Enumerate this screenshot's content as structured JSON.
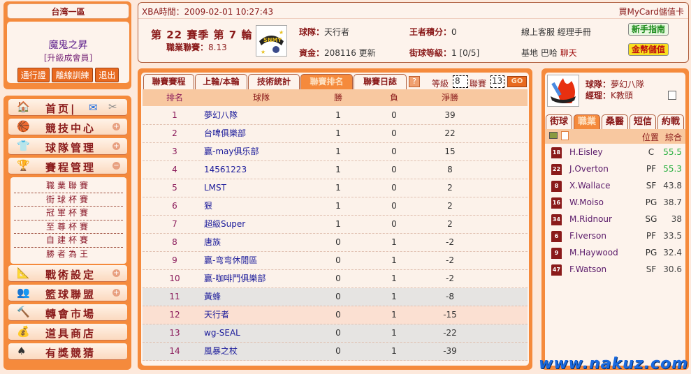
{
  "zone": "台湾一區",
  "user": {
    "name": "魔鬼之昇",
    "upgrade": "[升級成會員]",
    "buttons": [
      "通行證",
      "離線訓練",
      "退出"
    ]
  },
  "nav": {
    "items": [
      {
        "label": "首页|",
        "icon": "home-icon",
        "extra": true
      },
      {
        "label": "競技中心",
        "icon": "basketball-icon",
        "toggle": "+"
      },
      {
        "label": "球隊管理",
        "icon": "jersey-icon",
        "toggle": "+"
      },
      {
        "label": "賽程管理",
        "icon": "trophy-icon",
        "toggle": "−"
      },
      {
        "label": "戰術設定",
        "icon": "tactics-icon",
        "toggle": "+"
      },
      {
        "label": "籃球聯盟",
        "icon": "people-icon",
        "toggle": "+"
      },
      {
        "label": "轉會市場",
        "icon": "gavel-icon"
      },
      {
        "label": "道具商店",
        "icon": "gold-icon"
      },
      {
        "label": "有獎競猜",
        "icon": "spade-icon"
      }
    ],
    "submenu": [
      "職業聯賽",
      "街球杯賽",
      "冠軍杯賽",
      "至尊杯賽",
      "自建杯賽",
      "勝者為王"
    ]
  },
  "header": {
    "time_label": "XBA時間：",
    "time": "2009-02-01 10:27:43",
    "mycard": "買MyCard儲值卡",
    "season": "第 22 賽季 第 7 輪",
    "league_label": "職業聯賽：",
    "league_value": "8.13",
    "team_label": "球隊：",
    "team": "天行者",
    "funds_label": "資金：",
    "funds": "208116",
    "update": "更新",
    "king_label": "王者積分：",
    "king": "0",
    "street_label": "街球等級：",
    "street": "1 [0/5]",
    "links1": [
      "線上客服",
      "經理手冊"
    ],
    "links2": [
      "基地",
      "巴哈",
      "聊天"
    ],
    "guide": "新手指南",
    "topup": "金幣儲值"
  },
  "main": {
    "tabs": [
      "聯賽賽程",
      "上輪/本輪",
      "技術統計",
      "聯賽排名",
      "聯賽日誌"
    ],
    "active_tab": 3,
    "help": "?",
    "level_label": "等級",
    "level": "8",
    "league_label": "聯賽",
    "league": "13",
    "go": "GO",
    "columns": [
      "排名",
      "球隊",
      "勝",
      "負",
      "淨勝"
    ],
    "rows": [
      [
        "1",
        "夢幻八隊",
        "1",
        "0",
        "39"
      ],
      [
        "2",
        "台啤俱樂部",
        "1",
        "0",
        "22"
      ],
      [
        "3",
        "赢-may俱乐部",
        "1",
        "0",
        "15"
      ],
      [
        "4",
        "14561223",
        "1",
        "0",
        "8"
      ],
      [
        "5",
        "LMST",
        "1",
        "0",
        "2"
      ],
      [
        "6",
        "狠",
        "1",
        "0",
        "2"
      ],
      [
        "7",
        "超級Super",
        "1",
        "0",
        "2"
      ],
      [
        "8",
        "唐族",
        "0",
        "1",
        "-2"
      ],
      [
        "9",
        "赢-弯弯休閒區",
        "0",
        "1",
        "-2"
      ],
      [
        "10",
        "赢-咖啡鬥俱樂部",
        "0",
        "1",
        "-2"
      ],
      [
        "11",
        "黃蜂",
        "0",
        "1",
        "-8"
      ],
      [
        "12",
        "天行者",
        "0",
        "1",
        "-15"
      ],
      [
        "13",
        "wg-SEAL",
        "0",
        "1",
        "-22"
      ],
      [
        "14",
        "風暴之杖",
        "0",
        "1",
        "-39"
      ]
    ]
  },
  "right": {
    "team_label": "球隊：",
    "team": "夢幻八隊",
    "manager_label": "經理：",
    "manager": "K教頭",
    "tabs": [
      "街球",
      "職業",
      "桑醫",
      "短信",
      "約戰"
    ],
    "active_tab": 1,
    "col_pos": "位置",
    "col_rating": "綜合",
    "players": [
      {
        "num": "18",
        "name": "H.Eisley",
        "pos": "C",
        "rating": "55.5",
        "hi": true
      },
      {
        "num": "22",
        "name": "J.Overton",
        "pos": "PF",
        "rating": "55.3",
        "hi": true
      },
      {
        "num": "8",
        "name": "X.Wallace",
        "pos": "SF",
        "rating": "43.8"
      },
      {
        "num": "16",
        "name": "W.Moiso",
        "pos": "PG",
        "rating": "38.7"
      },
      {
        "num": "34",
        "name": "M.Ridnour",
        "pos": "SG",
        "rating": "38"
      },
      {
        "num": "6",
        "name": "F.Iverson",
        "pos": "PF",
        "rating": "33.5"
      },
      {
        "num": "9",
        "name": "M.Haywood",
        "pos": "PG",
        "rating": "32.4"
      },
      {
        "num": "47",
        "name": "F.Watson",
        "pos": "SF",
        "rating": "30.6"
      }
    ]
  },
  "watermark": "www.nakuz.com",
  "colors": {
    "accent": "#f58a3c",
    "title": "#8a1a1a",
    "link": "#1a1a9a",
    "green": "#2ab040"
  }
}
